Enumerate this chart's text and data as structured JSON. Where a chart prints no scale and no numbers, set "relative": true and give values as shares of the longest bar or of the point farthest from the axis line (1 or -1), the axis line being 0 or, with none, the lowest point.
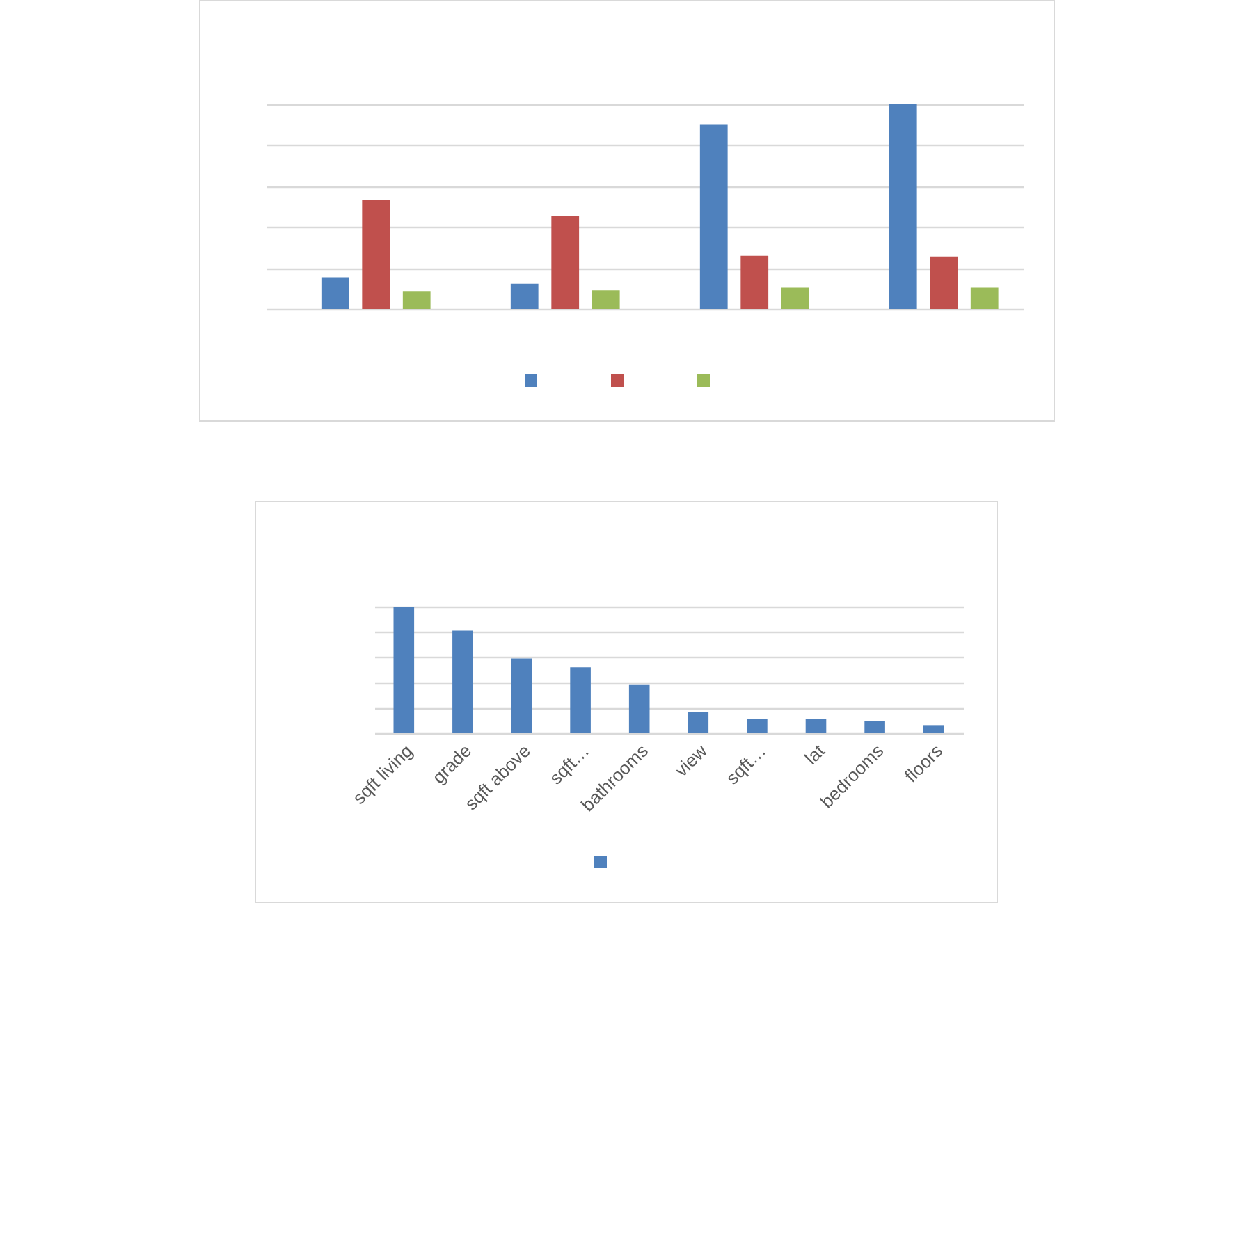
{
  "chart_data": [
    {
      "type": "bar",
      "relative": true,
      "categories": [
        null,
        null,
        null,
        null
      ],
      "series": [
        {
          "color": "#4f81bd",
          "values": [
            0.155,
            0.123,
            0.903,
            1
          ]
        },
        {
          "color": "#c0504d",
          "values": [
            0.534,
            0.456,
            0.259,
            0.256
          ]
        },
        {
          "color": "#9bbb59",
          "values": [
            0.084,
            0.091,
            0.104,
            0.104
          ]
        }
      ],
      "grid": "y"
    },
    {
      "type": "bar",
      "relative": true,
      "categories": [
        "sqft living",
        "grade",
        "sqft above",
        "sqft…",
        "bathrooms",
        "view",
        "sqft…",
        "lat",
        "bedrooms",
        "floors"
      ],
      "series": [
        {
          "color": "#4f81bd",
          "values": [
            1,
            0.81,
            0.59,
            0.52,
            0.38,
            0.17,
            0.11,
            0.11,
            0.096,
            0.064
          ]
        }
      ],
      "grid": "y"
    }
  ]
}
